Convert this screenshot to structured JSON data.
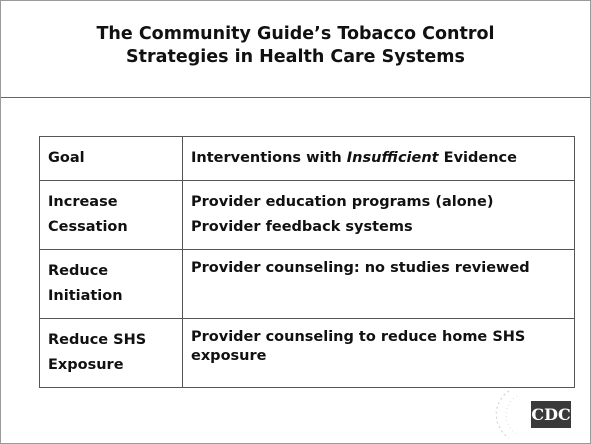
{
  "title": {
    "lines": [
      "The Community Guide’s Tobacco Control",
      "Strategies in Health Care Systems"
    ]
  },
  "table": {
    "header": [
      "Goal",
      [
        "Interventions with ",
        "Insufficient",
        " Evidence"
      ]
    ],
    "rows": [
      [
        "Increase Cessation",
        [
          "Provider education programs (alone)",
          "Provider feedback systems"
        ]
      ],
      [
        "Reduce Initiation",
        [
          "Provider counseling: no studies reviewed"
        ]
      ],
      [
        "Reduce SHS Exposure",
        [
          "Provider counseling to reduce home SHS exposure"
        ]
      ]
    ]
  },
  "logo": "CDC"
}
